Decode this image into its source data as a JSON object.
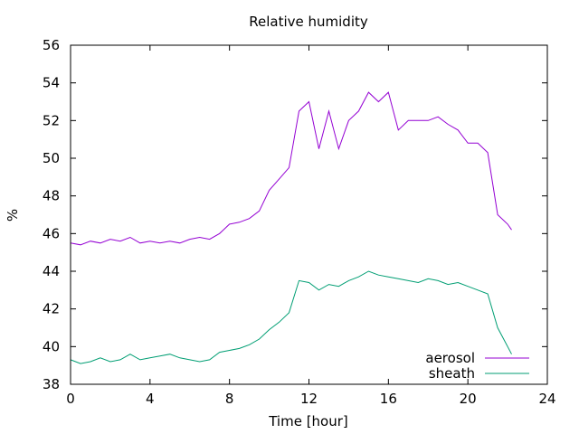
{
  "chart_data": {
    "type": "line",
    "title": "Relative humidity",
    "xlabel": "Time [hour]",
    "ylabel": "%",
    "xlim": [
      0,
      24
    ],
    "ylim": [
      38,
      56
    ],
    "xticks": [
      0,
      4,
      8,
      12,
      16,
      20,
      24
    ],
    "yticks": [
      38,
      40,
      42,
      44,
      46,
      48,
      50,
      52,
      54,
      56
    ],
    "grid": false,
    "legend_position": "bottom-right",
    "series": [
      {
        "name": "aerosol",
        "color": "#9400d3",
        "x": [
          0,
          0.5,
          1,
          1.5,
          2,
          2.5,
          3,
          3.5,
          4,
          4.5,
          5,
          5.5,
          6,
          6.5,
          7,
          7.5,
          8,
          8.5,
          9,
          9.5,
          10,
          10.5,
          11,
          11.5,
          12,
          12.5,
          13,
          13.5,
          14,
          14.5,
          15,
          15.5,
          16,
          16.5,
          17,
          17.5,
          18,
          18.5,
          19,
          19.5,
          20,
          20.5,
          21,
          21.5,
          22,
          22.2
        ],
        "y": [
          45.5,
          45.4,
          45.6,
          45.5,
          45.7,
          45.6,
          45.8,
          45.5,
          45.6,
          45.5,
          45.6,
          45.5,
          45.7,
          45.8,
          45.7,
          46.0,
          46.5,
          46.6,
          46.8,
          47.2,
          48.3,
          48.9,
          49.5,
          52.5,
          53.0,
          50.5,
          52.5,
          50.5,
          52.0,
          52.5,
          53.5,
          53.0,
          53.5,
          51.5,
          52.0,
          52.0,
          52.0,
          52.2,
          51.8,
          51.5,
          50.8,
          50.8,
          50.3,
          47.0,
          46.5,
          46.2
        ]
      },
      {
        "name": "sheath",
        "color": "#009e73",
        "x": [
          0,
          0.5,
          1,
          1.5,
          2,
          2.5,
          3,
          3.5,
          4,
          4.5,
          5,
          5.5,
          6,
          6.5,
          7,
          7.5,
          8,
          8.5,
          9,
          9.5,
          10,
          10.5,
          11,
          11.5,
          12,
          12.5,
          13,
          13.5,
          14,
          14.5,
          15,
          15.5,
          16,
          16.5,
          17,
          17.5,
          18,
          18.5,
          19,
          19.5,
          20,
          20.5,
          21,
          21.5,
          22,
          22.2
        ],
        "y": [
          39.3,
          39.1,
          39.2,
          39.4,
          39.2,
          39.3,
          39.6,
          39.3,
          39.4,
          39.5,
          39.6,
          39.4,
          39.3,
          39.2,
          39.3,
          39.7,
          39.8,
          39.9,
          40.1,
          40.4,
          40.9,
          41.3,
          41.8,
          43.5,
          43.4,
          43.0,
          43.3,
          43.2,
          43.5,
          43.7,
          44.0,
          43.8,
          43.7,
          43.6,
          43.5,
          43.4,
          43.6,
          43.5,
          43.3,
          43.4,
          43.2,
          43.0,
          42.8,
          41.0,
          40.0,
          39.6
        ]
      }
    ]
  }
}
